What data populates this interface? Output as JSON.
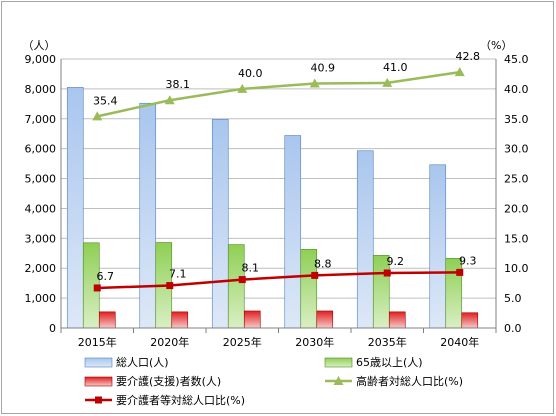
{
  "chart_data": {
    "type": "bar",
    "categories": [
      "2015年",
      "2020年",
      "2025年",
      "2030年",
      "2035年",
      "2040年"
    ],
    "left_axis": {
      "unit": "（人）",
      "ylim": [
        0,
        9000
      ],
      "ticks": [
        "0",
        "1,000",
        "2,000",
        "3,000",
        "4,000",
        "5,000",
        "6,000",
        "7,000",
        "8,000",
        "9,000"
      ]
    },
    "right_axis": {
      "unit": "（%）",
      "ylim": [
        0,
        45
      ],
      "ticks": [
        "0.0",
        "5.0",
        "10.0",
        "15.0",
        "20.0",
        "25.0",
        "30.0",
        "35.0",
        "40.0",
        "45.0"
      ]
    },
    "series": [
      {
        "name": "総人口(人)",
        "kind": "bar",
        "axis": "left",
        "color": "#8db3e2",
        "values": [
          8050,
          7520,
          6980,
          6440,
          5930,
          5460
        ]
      },
      {
        "name": "65歳以上(人)",
        "kind": "bar",
        "axis": "left",
        "color": "#92d050",
        "values": [
          2850,
          2860,
          2790,
          2630,
          2430,
          2330
        ]
      },
      {
        "name": "要介護(支援)者数(人)",
        "kind": "bar",
        "axis": "left",
        "color": "#e83a3a",
        "values": [
          540,
          540,
          570,
          570,
          540,
          510
        ]
      },
      {
        "name": "高齢者対総人口比(%)",
        "kind": "line",
        "axis": "right",
        "color": "#9bbb59",
        "marker": "triangle",
        "values": [
          35.4,
          38.1,
          40.0,
          40.9,
          41.0,
          42.8
        ],
        "labels": [
          "35.4",
          "38.1",
          "40.0",
          "40.9",
          "41.0",
          "42.8"
        ]
      },
      {
        "name": "要介護者等対総人口比(%)",
        "kind": "line",
        "axis": "right",
        "color": "#c00000",
        "marker": "square",
        "values": [
          6.7,
          7.1,
          8.1,
          8.8,
          9.2,
          9.3
        ],
        "labels": [
          "6.7",
          "7.1",
          "8.1",
          "8.8",
          "9.2",
          "9.3"
        ]
      }
    ],
    "grid": true,
    "legend": "bottom"
  }
}
